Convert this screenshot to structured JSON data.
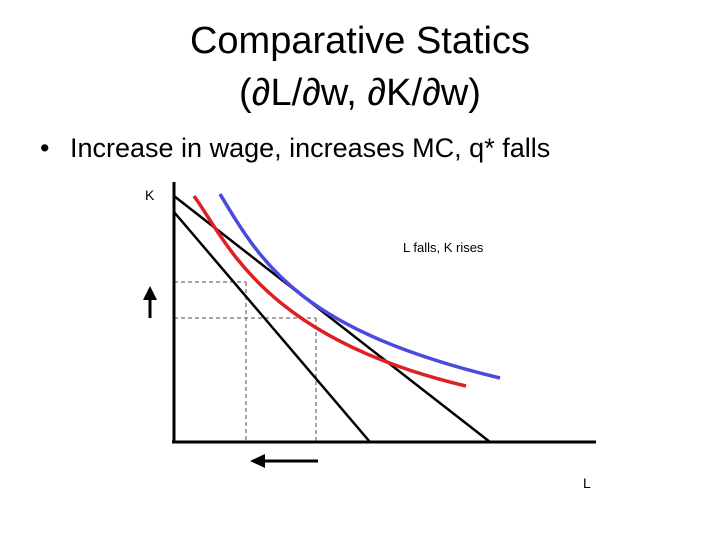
{
  "slide": {
    "title_line1": "Comparative Statics",
    "title_line2": "(∂L/∂w, ∂K/∂w)",
    "bullet_marker": "•",
    "bullet_text": "Increase in wage, increases MC, q* falls"
  },
  "diagram": {
    "y_axis_label": "K",
    "x_axis_label": "L",
    "annotation": "L falls, K rises",
    "colors": {
      "axes": "#000000",
      "isocost_lines": "#000000",
      "original_isoquant": "#4a4ae0",
      "new_isoquant": "#e02020",
      "guides": "#888888",
      "arrows": "#000000"
    },
    "elements": {
      "original_isoquant": "blue curve",
      "new_isoquant": "red curve",
      "isocost_lines": 2,
      "k_change_arrow": "arrow-up-icon",
      "l_change_arrow": "arrow-left-icon"
    }
  }
}
